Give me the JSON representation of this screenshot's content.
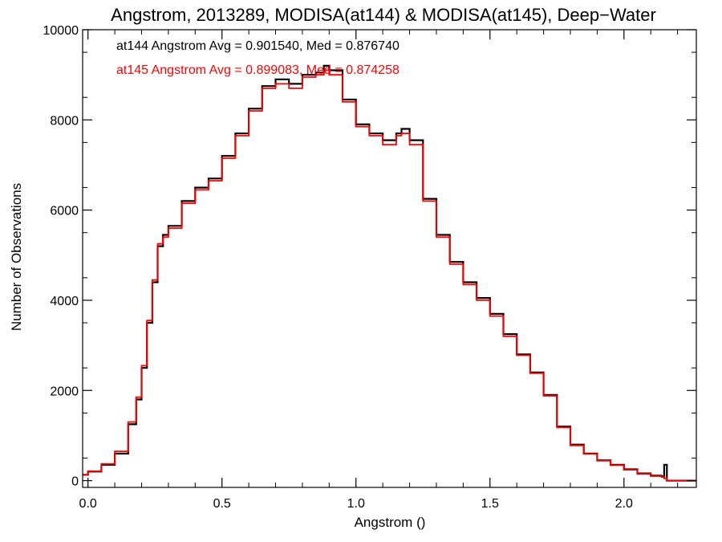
{
  "chart_data": {
    "type": "line",
    "title": "Angstrom, 2013289, MODISA(at144) & MODISA(at145), Deep−Water",
    "xlabel": "Angstrom ()",
    "ylabel": "Number of Observations",
    "xlim": [
      -0.02,
      2.27
    ],
    "ylim": [
      -150,
      10000
    ],
    "xticks": [
      0.0,
      0.5,
      1.0,
      1.5,
      2.0
    ],
    "xtick_labels": [
      "0.0",
      "0.5",
      "1.0",
      "1.5",
      "2.0"
    ],
    "yticks": [
      0,
      2000,
      4000,
      6000,
      8000,
      10000
    ],
    "ytick_labels": [
      "0",
      "2000",
      "4000",
      "6000",
      "8000",
      "10000"
    ],
    "grid": false,
    "annotations": [
      {
        "text": "at144 Angstrom Avg = 0.901540, Med = 0.876740",
        "color": "#000000"
      },
      {
        "text": "at145 Angstrom Avg = 0.899083, Med = 0.874258",
        "color": "#ff0000"
      }
    ],
    "series": [
      {
        "color": "#000000",
        "step": true,
        "x": [
          -0.02,
          0.0,
          0.05,
          0.1,
          0.15,
          0.18,
          0.2,
          0.22,
          0.24,
          0.26,
          0.28,
          0.3,
          0.35,
          0.4,
          0.45,
          0.5,
          0.55,
          0.6,
          0.65,
          0.7,
          0.75,
          0.8,
          0.85,
          0.88,
          0.9,
          0.95,
          1.0,
          1.05,
          1.1,
          1.15,
          1.17,
          1.2,
          1.25,
          1.3,
          1.35,
          1.4,
          1.45,
          1.5,
          1.55,
          1.6,
          1.65,
          1.7,
          1.75,
          1.8,
          1.85,
          1.9,
          1.95,
          2.0,
          2.05,
          2.1,
          2.14,
          2.15,
          2.16,
          2.27
        ],
        "y": [
          130,
          200,
          350,
          600,
          1250,
          1800,
          2500,
          3500,
          4400,
          5200,
          5450,
          5650,
          6200,
          6500,
          6700,
          7200,
          7700,
          8250,
          8750,
          8900,
          8800,
          9000,
          9050,
          9200,
          9100,
          8450,
          7900,
          7700,
          7550,
          7700,
          7800,
          7550,
          6250,
          5450,
          4850,
          4400,
          4050,
          3700,
          3250,
          2800,
          2400,
          1900,
          1200,
          800,
          600,
          450,
          350,
          250,
          160,
          110,
          90,
          350,
          0,
          0
        ]
      },
      {
        "color": "#ff0000",
        "step": true,
        "x": [
          -0.02,
          0.0,
          0.05,
          0.1,
          0.15,
          0.18,
          0.2,
          0.22,
          0.24,
          0.26,
          0.28,
          0.3,
          0.35,
          0.4,
          0.45,
          0.5,
          0.55,
          0.6,
          0.65,
          0.7,
          0.75,
          0.8,
          0.85,
          0.88,
          0.9,
          0.95,
          1.0,
          1.05,
          1.1,
          1.15,
          1.17,
          1.2,
          1.25,
          1.3,
          1.35,
          1.4,
          1.45,
          1.5,
          1.55,
          1.6,
          1.65,
          1.7,
          1.75,
          1.8,
          1.85,
          1.9,
          1.95,
          2.0,
          2.05,
          2.1,
          2.14,
          2.15,
          2.16,
          2.27
        ],
        "y": [
          130,
          210,
          370,
          650,
          1300,
          1850,
          2550,
          3550,
          4450,
          5250,
          5400,
          5600,
          6150,
          6450,
          6650,
          7150,
          7650,
          8200,
          8700,
          8800,
          8700,
          8950,
          9000,
          9100,
          9000,
          8400,
          7850,
          7650,
          7450,
          7650,
          7700,
          7450,
          6200,
          5400,
          4800,
          4350,
          4000,
          3650,
          3200,
          2780,
          2380,
          1880,
          1180,
          780,
          590,
          440,
          340,
          240,
          150,
          100,
          80,
          50,
          0,
          0
        ]
      }
    ]
  }
}
